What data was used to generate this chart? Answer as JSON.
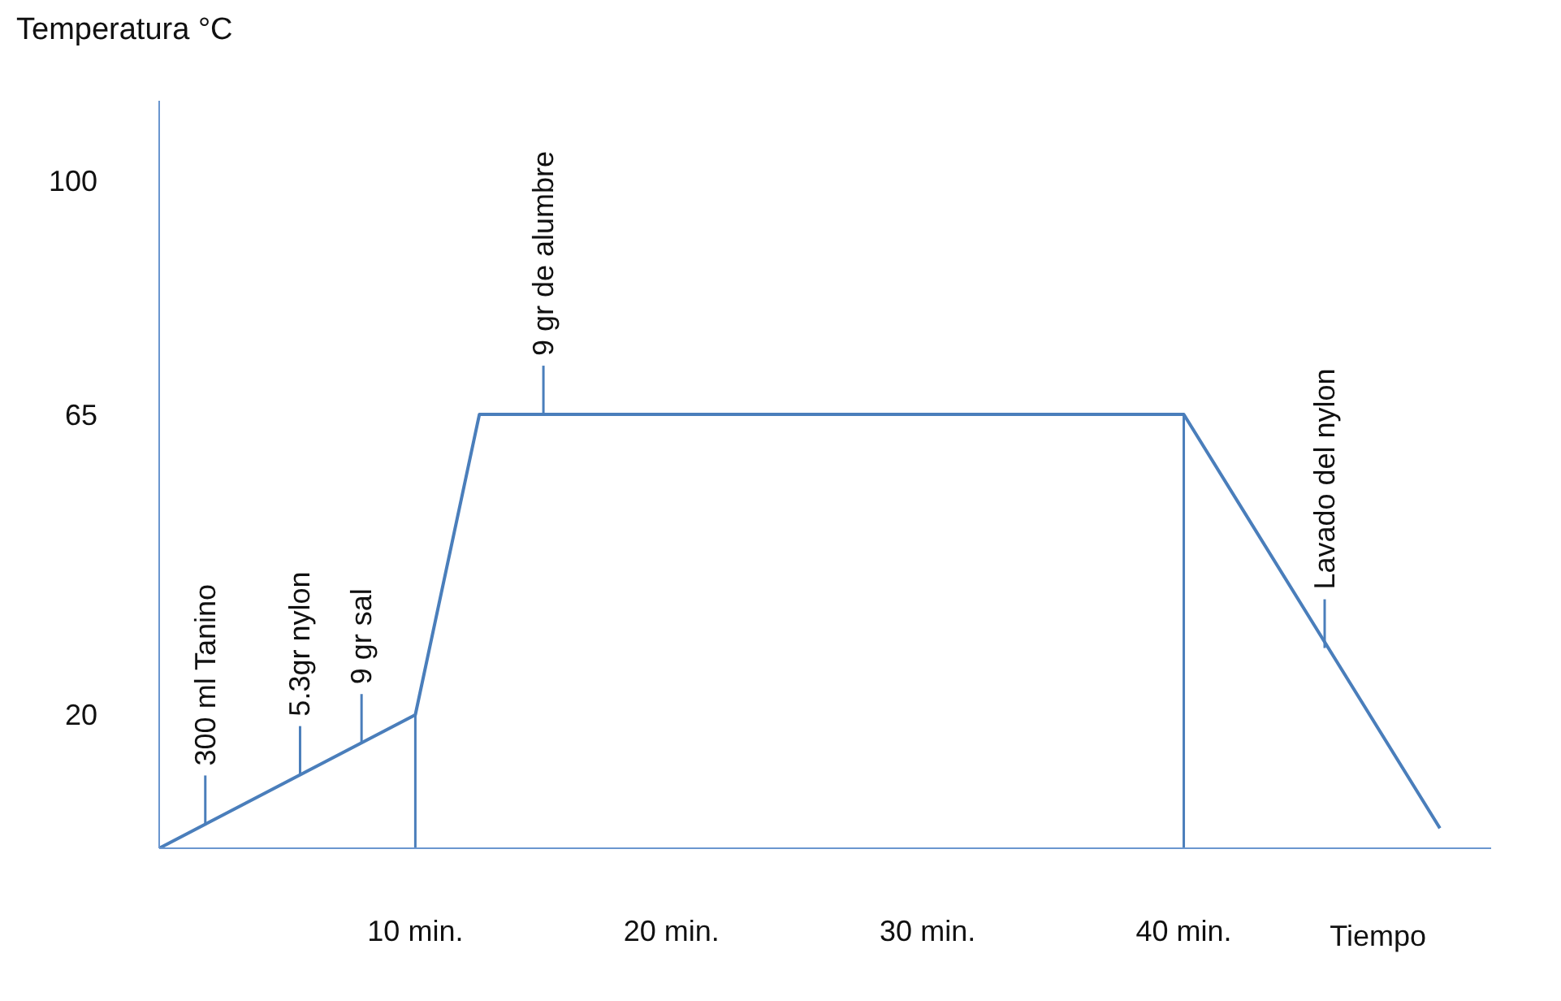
{
  "chart_data": {
    "type": "line",
    "ylabel": "Temperatura °C",
    "xlabel": "Tiempo",
    "x": [
      0,
      10,
      12.5,
      40,
      50
    ],
    "series": [
      {
        "color": "#4a7ebb",
        "values": [
          0,
          20,
          65,
          65,
          3
        ]
      }
    ],
    "xlim": [
      0,
      52
    ],
    "ylim": [
      0,
      112
    ],
    "xticks": [
      {
        "value": 10,
        "label": "10 min."
      },
      {
        "value": 20,
        "label": "20 min."
      },
      {
        "value": 30,
        "label": "30 min."
      },
      {
        "value": 40,
        "label": "40 min."
      }
    ],
    "yticks": [
      20,
      65,
      100
    ],
    "ref_lines": [
      {
        "axis": "x",
        "value": 10,
        "color": "#4a7ebb"
      },
      {
        "axis": "x",
        "value": 40,
        "color": "#4a7ebb"
      }
    ],
    "annotations": [
      {
        "text": "300 ml Tanino",
        "x": 1.8,
        "y": 3.6
      },
      {
        "text": "5.3gr nylon",
        "x": 5.5,
        "y": 11
      },
      {
        "text": "9 gr sal",
        "x": 7.9,
        "y": 15.8
      },
      {
        "text": "9 gr de alumbre",
        "x": 15,
        "y": 65
      },
      {
        "text": "Lavado del nylon",
        "x": 45.5,
        "y": 30
      }
    ],
    "grid": false,
    "legend": false,
    "marker": "none",
    "line_style": "solid"
  }
}
